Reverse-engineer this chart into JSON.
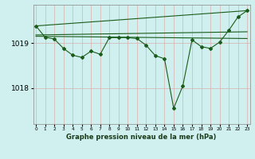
{
  "bg_color": "#cff0ee",
  "grid_color": "#d8b0b0",
  "line_color": "#1a5c1a",
  "title": "Graphe pression niveau de la mer (hPa)",
  "xlabel_hours": [
    0,
    1,
    2,
    3,
    4,
    5,
    6,
    7,
    8,
    9,
    10,
    11,
    12,
    13,
    14,
    15,
    16,
    17,
    18,
    19,
    20,
    21,
    22,
    23
  ],
  "yticks": [
    1018,
    1019
  ],
  "ylim": [
    1017.2,
    1019.85
  ],
  "xlim": [
    -0.3,
    23.3
  ],
  "series_main": {
    "x": [
      0,
      1,
      2,
      3,
      4,
      5,
      6,
      7,
      8,
      9,
      10,
      11,
      12,
      13,
      14,
      15,
      16,
      17,
      18,
      19,
      20,
      21,
      22,
      23
    ],
    "y": [
      1019.38,
      1019.13,
      1019.09,
      1018.88,
      1018.73,
      1018.68,
      1018.82,
      1018.75,
      1019.12,
      1019.12,
      1019.12,
      1019.1,
      1018.95,
      1018.72,
      1018.65,
      1017.55,
      1018.05,
      1019.07,
      1018.92,
      1018.88,
      1019.02,
      1019.28,
      1019.58,
      1019.72
    ]
  },
  "series_line1": {
    "x": [
      0,
      23
    ],
    "y": [
      1019.38,
      1019.72
    ]
  },
  "series_line2": {
    "x": [
      0,
      23
    ],
    "y": [
      1019.18,
      1019.25
    ]
  },
  "series_line3": {
    "x": [
      0,
      23
    ],
    "y": [
      1019.15,
      1019.1
    ]
  }
}
